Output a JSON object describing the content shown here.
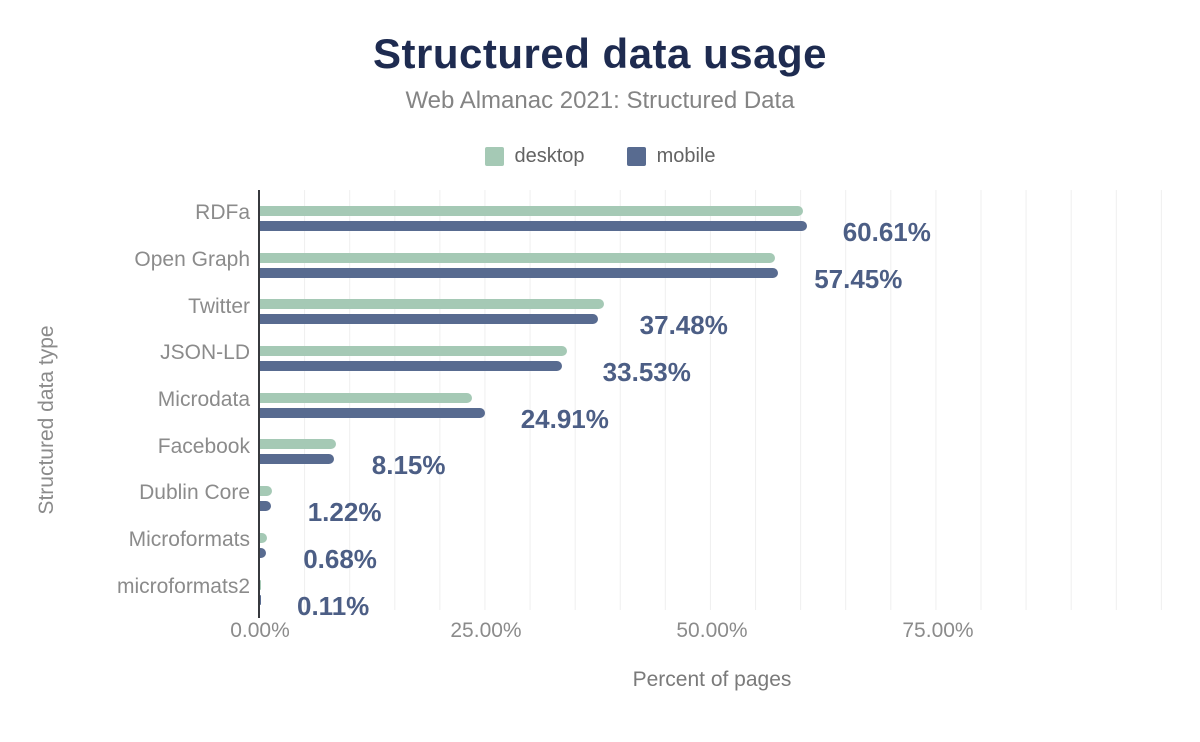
{
  "header": {
    "title": "Structured data usage",
    "subtitle": "Web Almanac 2021: Structured Data"
  },
  "legend": {
    "items": [
      {
        "label": "desktop",
        "color": "#a5c9b5"
      },
      {
        "label": "mobile",
        "color": "#586b90"
      }
    ]
  },
  "chart_data": {
    "type": "bar",
    "orientation": "horizontal",
    "title": "Structured data usage",
    "subtitle": "Web Almanac 2021: Structured Data",
    "categories": [
      "RDFa",
      "Open Graph",
      "Twitter",
      "JSON-LD",
      "Microdata",
      "Facebook",
      "Dublin Core",
      "Microformats",
      "microformats2"
    ],
    "series": [
      {
        "name": "desktop",
        "color": "#a5c9b5",
        "values": [
          60.2,
          57.1,
          38.1,
          34.0,
          23.5,
          8.4,
          1.3,
          0.8,
          0.1
        ]
      },
      {
        "name": "mobile",
        "color": "#586b90",
        "values": [
          60.61,
          57.45,
          37.48,
          33.53,
          24.91,
          8.15,
          1.22,
          0.68,
          0.11
        ]
      }
    ],
    "value_labels": [
      "60.61%",
      "57.45%",
      "37.48%",
      "33.53%",
      "24.91%",
      "8.15%",
      "1.22%",
      "0.68%",
      "0.11%"
    ],
    "xlabel": "Percent of pages",
    "ylabel": "Structured data type",
    "x_ticks": [
      "0.00%",
      "25.00%",
      "50.00%",
      "75.00%"
    ],
    "x_tick_values": [
      0,
      25,
      50,
      75
    ],
    "xlim": [
      0,
      100
    ],
    "grid": "vertical minor gridlines every 5%",
    "legend_position": "top"
  },
  "colors": {
    "title": "#1e2b50",
    "subtitle": "#848484",
    "axis": "#37393e",
    "category_labels": "#8b8b8b",
    "tick_labels": "#8b8b8b",
    "value_labels": "#4c5e85",
    "desktop_bar": "#a5c9b5",
    "mobile_bar": "#586b90",
    "gridline": "#efefef",
    "background": "#ffffff"
  }
}
